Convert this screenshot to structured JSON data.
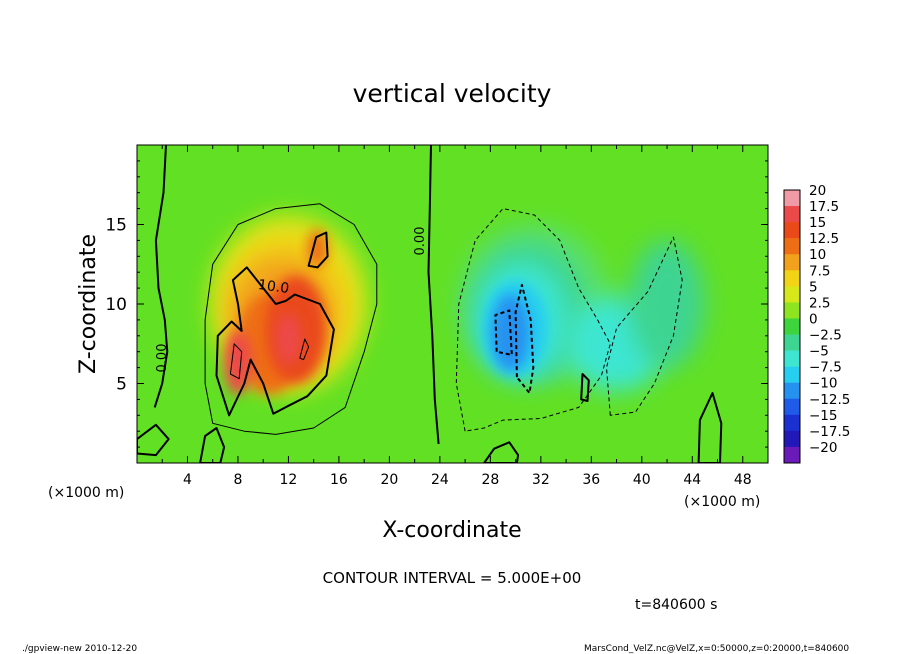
{
  "chart_data": {
    "type": "heatmap",
    "title": "vertical velocity",
    "xlabel": "X-coordinate",
    "ylabel": "Z-coordinate",
    "x_unit_left": "(×1000 m)",
    "x_unit_right": "(×1000 m)",
    "xlim": [
      0,
      50
    ],
    "ylim": [
      0,
      20
    ],
    "xticks": [
      "4",
      "8",
      "12",
      "16",
      "20",
      "24",
      "28",
      "32",
      "36",
      "40",
      "44",
      "48"
    ],
    "yticks": [
      "5",
      "10",
      "15"
    ],
    "colorbar": {
      "labels": [
        "20",
        "17.5",
        "15",
        "12.5",
        "10",
        "7.5",
        "5",
        "2.5",
        "0",
        "−2.5",
        "−5",
        "−7.5",
        "−10",
        "−12.5",
        "−15",
        "−17.5",
        "−20"
      ],
      "colors": [
        "#ef9aa5",
        "#ec4a4a",
        "#ea4a1a",
        "#ee6e16",
        "#f2a11c",
        "#f2d316",
        "#d6e81a",
        "#8ee41e",
        "#3ed43e",
        "#3ed492",
        "#3ee6d2",
        "#26cef0",
        "#2692f0",
        "#1f5ae8",
        "#1a30d0",
        "#2218b8",
        "#6a1ab8"
      ]
    },
    "contour_labels": [
      "10.0",
      "0.00",
      "0.00"
    ],
    "contour_interval": "CONTOUR INTERVAL = 5.000E+00",
    "time": "t=840600 s",
    "footer_left": "./gpview-new  2010-12-20",
    "footer_right": "MarsCond_VelZ.nc@VelZ,x=0:50000,z=0:20000,t=840600",
    "features": [
      {
        "label": "updraft core",
        "center": [
          8,
          6.3
        ],
        "peak": 12
      },
      {
        "label": "updraft core",
        "center": [
          12,
          8
        ],
        "peak": 15
      },
      {
        "label": "updraft core",
        "center": [
          14,
          13.5
        ],
        "peak": 10
      },
      {
        "label": "downdraft core",
        "center": [
          30,
          8
        ],
        "peak": -10
      },
      {
        "label": "downdraft core",
        "center": [
          29,
          11
        ],
        "peak": -7
      }
    ]
  }
}
